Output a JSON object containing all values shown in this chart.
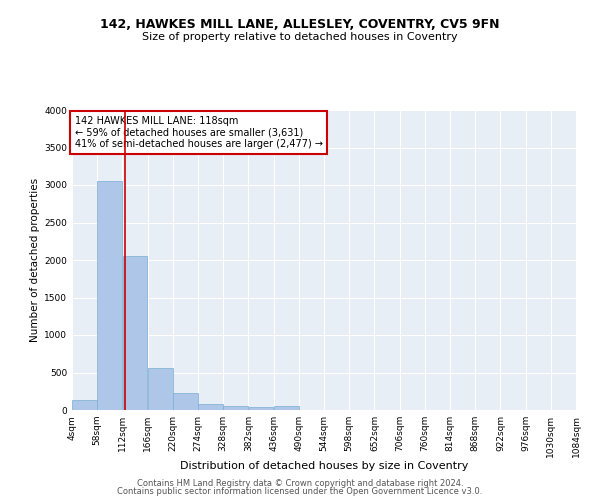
{
  "title1": "142, HAWKES MILL LANE, ALLESLEY, COVENTRY, CV5 9FN",
  "title2": "Size of property relative to detached houses in Coventry",
  "xlabel": "Distribution of detached houses by size in Coventry",
  "ylabel": "Number of detached properties",
  "bin_edges": [
    4,
    58,
    112,
    166,
    220,
    274,
    328,
    382,
    436,
    490,
    544,
    598,
    652,
    706,
    760,
    814,
    868,
    922,
    976,
    1030,
    1084
  ],
  "bar_heights": [
    140,
    3060,
    2060,
    560,
    230,
    80,
    55,
    35,
    60,
    0,
    0,
    0,
    0,
    0,
    0,
    0,
    0,
    0,
    0,
    0
  ],
  "bar_color": "#aec6e8",
  "bar_edgecolor": "#7aafd4",
  "property_size": 118,
  "vline_color": "#cc0000",
  "annotation_text": "142 HAWKES MILL LANE: 118sqm\n← 59% of detached houses are smaller (3,631)\n41% of semi-detached houses are larger (2,477) →",
  "annotation_box_color": "#ffffff",
  "annotation_box_edgecolor": "#cc0000",
  "ylim": [
    0,
    4000
  ],
  "yticks": [
    0,
    500,
    1000,
    1500,
    2000,
    2500,
    3000,
    3500,
    4000
  ],
  "bg_color": "#e8eef5",
  "footer1": "Contains HM Land Registry data © Crown copyright and database right 2024.",
  "footer2": "Contains public sector information licensed under the Open Government Licence v3.0.",
  "title1_fontsize": 9,
  "title2_fontsize": 8,
  "xlabel_fontsize": 8,
  "ylabel_fontsize": 7.5,
  "tick_fontsize": 6.5,
  "annotation_fontsize": 7,
  "footer_fontsize": 6
}
